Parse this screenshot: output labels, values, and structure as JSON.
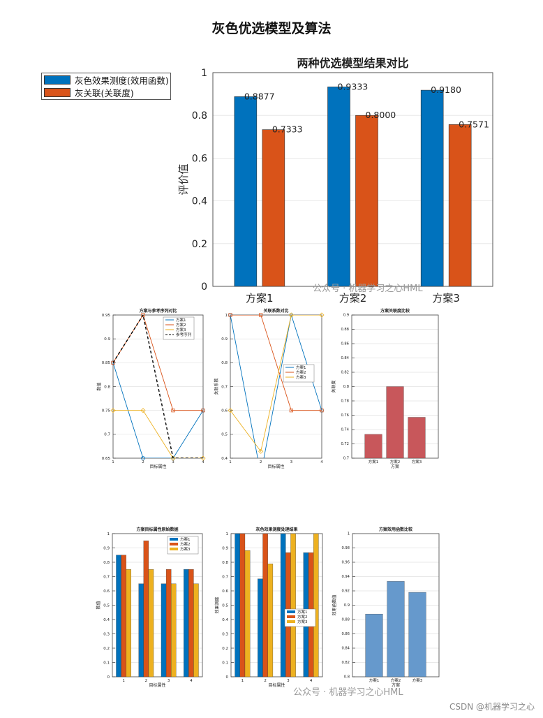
{
  "page": {
    "title": "灰色优选模型及算法"
  },
  "watermarks": {
    "mid": "公众号 · 机器学习之心HML",
    "bottom": "公众号 · 机器学习之心HML",
    "csdn": "CSDN @机器学习之心"
  },
  "colors": {
    "blue": "#0072BD",
    "orange": "#D95319",
    "yellow": "#EDB120",
    "red_bar": "#C8575B",
    "light_blue_bar": "#6699CC"
  },
  "chart_data": [
    {
      "id": "main",
      "type": "bar",
      "title": "两种优选模型结果对比",
      "ylabel": "评价值",
      "xlabel": "",
      "categories": [
        "方案1",
        "方案2",
        "方案3"
      ],
      "ylim": [
        0,
        1
      ],
      "yticks": [
        "0",
        "0.2",
        "0.4",
        "0.6",
        "0.8",
        "1"
      ],
      "grid": true,
      "legend_placement": "outside-left",
      "series": [
        {
          "name": "灰色效果测度(效用函数)",
          "values": [
            0.8877,
            0.9333,
            0.918
          ],
          "labels": [
            "0.8877",
            "0.9333",
            "0.9180"
          ]
        },
        {
          "name": "灰关联(关联度)",
          "values": [
            0.7333,
            0.8,
            0.7571
          ],
          "labels": [
            "0.7333",
            "0.8000",
            "0.7571"
          ]
        }
      ]
    },
    {
      "id": "sub1",
      "type": "line",
      "title": "方案与参考序列对比",
      "xlabel": "目标属性",
      "ylabel": "数值",
      "x": [
        1,
        2,
        3,
        4
      ],
      "ylim": [
        0.65,
        0.95
      ],
      "yticks": [
        "0.65",
        "0.7",
        "0.75",
        "0.8",
        "0.85",
        "0.9",
        "0.95"
      ],
      "xticks": [
        "1",
        "2",
        "3",
        "4"
      ],
      "legend_placement": "top-right",
      "series": [
        {
          "name": "方案1",
          "values": [
            0.85,
            0.65,
            0.65,
            0.75
          ]
        },
        {
          "name": "方案2",
          "values": [
            0.85,
            0.95,
            0.75,
            0.75
          ]
        },
        {
          "name": "方案3",
          "values": [
            0.75,
            0.75,
            0.65,
            0.65
          ]
        },
        {
          "name": "参考序列",
          "values": [
            0.85,
            0.95,
            0.65,
            0.65
          ]
        }
      ]
    },
    {
      "id": "sub2",
      "type": "line",
      "title": "关联系数对比",
      "xlabel": "目标属性",
      "ylabel": "关联系数",
      "x": [
        1,
        2,
        3,
        4
      ],
      "ylim": [
        0.4,
        1.0
      ],
      "yticks": [
        "0.4",
        "0.5",
        "0.6",
        "0.7",
        "0.8",
        "0.9",
        "1"
      ],
      "xticks": [
        "1",
        "2",
        "3",
        "4"
      ],
      "legend_placement": "right",
      "series": [
        {
          "name": "方案1",
          "values": [
            1.0,
            0.333,
            1.0,
            0.6
          ]
        },
        {
          "name": "方案2",
          "values": [
            1.0,
            1.0,
            0.6,
            0.6
          ]
        },
        {
          "name": "方案3",
          "values": [
            0.6,
            0.4286,
            1.0,
            1.0
          ]
        }
      ]
    },
    {
      "id": "sub3",
      "type": "bar",
      "title": "方案关联度比较",
      "xlabel": "方案",
      "ylabel": "关联度",
      "categories": [
        "方案1",
        "方案2",
        "方案3"
      ],
      "ylim": [
        0.7,
        0.9
      ],
      "yticks": [
        "0.7",
        "0.72",
        "0.74",
        "0.76",
        "0.78",
        "0.8",
        "0.82",
        "0.84",
        "0.86",
        "0.88",
        "0.9"
      ],
      "values": [
        0.7333,
        0.8,
        0.7571
      ]
    },
    {
      "id": "sub4",
      "type": "bar",
      "title": "方案目标属性原始数据",
      "xlabel": "目标属性",
      "ylabel": "数值",
      "categories": [
        "1",
        "2",
        "3",
        "4"
      ],
      "ylim": [
        0,
        1
      ],
      "yticks": [
        "0",
        "0.1",
        "0.2",
        "0.3",
        "0.4",
        "0.5",
        "0.6",
        "0.7",
        "0.8",
        "0.9",
        "1"
      ],
      "legend_placement": "top-right",
      "series": [
        {
          "name": "方案1",
          "values": [
            0.85,
            0.65,
            0.65,
            0.75
          ]
        },
        {
          "name": "方案2",
          "values": [
            0.85,
            0.95,
            0.75,
            0.75
          ]
        },
        {
          "name": "方案3",
          "values": [
            0.75,
            0.75,
            0.65,
            0.65
          ]
        }
      ]
    },
    {
      "id": "sub5",
      "type": "bar",
      "title": "灰色效果测度处理结果",
      "xlabel": "目标属性",
      "ylabel": "效果测度",
      "categories": [
        "1",
        "2",
        "3",
        "4"
      ],
      "ylim": [
        0,
        1
      ],
      "yticks": [
        "0",
        "0.1",
        "0.2",
        "0.3",
        "0.4",
        "0.5",
        "0.6",
        "0.7",
        "0.8",
        "0.9",
        "1"
      ],
      "legend_placement": "lower-right",
      "series": [
        {
          "name": "方案1",
          "values": [
            1.0,
            0.6842,
            1.0,
            0.8667
          ]
        },
        {
          "name": "方案2",
          "values": [
            1.0,
            1.0,
            0.8667,
            0.8667
          ]
        },
        {
          "name": "方案3",
          "values": [
            0.8824,
            0.7895,
            1.0,
            1.0
          ]
        }
      ]
    },
    {
      "id": "sub6",
      "type": "bar",
      "title": "方案效用函数比较",
      "xlabel": "方案",
      "ylabel": "效用函数值",
      "categories": [
        "方案1",
        "方案2",
        "方案3"
      ],
      "ylim": [
        0.8,
        1.0
      ],
      "yticks": [
        "0.8",
        "0.82",
        "0.84",
        "0.86",
        "0.88",
        "0.9",
        "0.92",
        "0.94",
        "0.96",
        "0.98",
        "1"
      ],
      "values": [
        0.8877,
        0.9333,
        0.918
      ]
    }
  ]
}
